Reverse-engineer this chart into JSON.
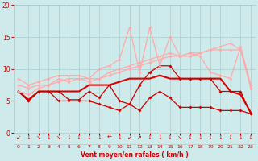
{
  "background_color": "#ceeaea",
  "grid_color": "#aacccc",
  "xlabel": "Vent moyen/en rafales ( km/h )",
  "xlabel_color": "#cc0000",
  "tick_color": "#cc0000",
  "xlim": [
    -0.5,
    23.5
  ],
  "ylim": [
    0,
    20
  ],
  "yticks": [
    0,
    5,
    10,
    15,
    20
  ],
  "xticks": [
    0,
    1,
    2,
    3,
    4,
    5,
    6,
    7,
    8,
    9,
    10,
    11,
    12,
    13,
    14,
    15,
    16,
    17,
    18,
    19,
    20,
    21,
    22,
    23
  ],
  "arrow_labels": [
    "↙",
    "↓",
    "↘",
    "↓",
    "↘",
    "↓",
    "↓",
    "↓",
    "↓",
    "←",
    "↓",
    "↙",
    "↗",
    "↓",
    "↓",
    "↓",
    "↘",
    "↓",
    "↓",
    "↓",
    "↓",
    "↓",
    "↓",
    "↓"
  ],
  "lines": [
    {
      "x": [
        0,
        1,
        2,
        3,
        4,
        5,
        6,
        7,
        8,
        9,
        10,
        11,
        12,
        13,
        14,
        15,
        16,
        17,
        18,
        19,
        20,
        21,
        22,
        23
      ],
      "y": [
        6.5,
        5.2,
        6.5,
        6.5,
        6.5,
        6.5,
        6.5,
        7.5,
        7.5,
        7.5,
        8.0,
        8.5,
        8.5,
        8.5,
        9.0,
        8.5,
        8.5,
        8.5,
        8.5,
        8.5,
        8.5,
        6.5,
        6.0,
        3.2
      ],
      "color": "#dd0000",
      "lw": 1.5,
      "marker": null,
      "ms": 0
    },
    {
      "x": [
        0,
        1,
        2,
        3,
        4,
        5,
        6,
        7,
        8,
        9,
        10,
        11,
        12,
        13,
        14,
        15,
        16,
        17,
        18,
        19,
        20,
        21,
        22,
        23
      ],
      "y": [
        6.5,
        5.0,
        6.5,
        6.5,
        6.5,
        5.2,
        5.2,
        6.5,
        5.5,
        7.5,
        5.0,
        4.5,
        7.5,
        9.5,
        10.5,
        10.5,
        8.5,
        8.5,
        8.5,
        8.5,
        6.5,
        6.5,
        6.5,
        3.0
      ],
      "color": "#cc0000",
      "lw": 0.9,
      "marker": "D",
      "ms": 2.0
    },
    {
      "x": [
        0,
        1,
        2,
        3,
        4,
        5,
        6,
        7,
        8,
        9,
        10,
        11,
        12,
        13,
        14,
        15,
        16,
        17,
        18,
        19,
        20,
        21,
        22,
        23
      ],
      "y": [
        6.5,
        5.0,
        6.5,
        6.5,
        5.0,
        5.0,
        5.0,
        5.0,
        4.5,
        4.0,
        3.5,
        4.5,
        3.5,
        5.5,
        6.5,
        5.5,
        4.0,
        4.0,
        4.0,
        4.0,
        3.5,
        3.5,
        3.5,
        3.0
      ],
      "color": "#cc0000",
      "lw": 0.9,
      "marker": "D",
      "ms": 2.0
    },
    {
      "x": [
        0,
        1,
        2,
        3,
        4,
        5,
        6,
        7,
        8,
        9,
        10,
        11,
        12,
        13,
        14,
        15,
        16,
        17,
        18,
        19,
        20,
        21,
        22,
        23
      ],
      "y": [
        8.5,
        7.5,
        8.0,
        8.5,
        9.0,
        9.0,
        9.0,
        8.5,
        10.0,
        10.5,
        11.5,
        16.5,
        9.5,
        16.5,
        10.5,
        15.0,
        12.0,
        12.5,
        12.0,
        9.5,
        9.0,
        8.5,
        13.5,
        7.5
      ],
      "color": "#ffaaaa",
      "lw": 0.9,
      "marker": "D",
      "ms": 2.0
    },
    {
      "x": [
        0,
        1,
        2,
        3,
        4,
        5,
        6,
        7,
        8,
        9,
        10,
        11,
        12,
        13,
        14,
        15,
        16,
        17,
        18,
        19,
        20,
        21,
        22,
        23
      ],
      "y": [
        7.5,
        7.0,
        7.5,
        7.5,
        8.5,
        8.0,
        8.5,
        8.5,
        8.5,
        9.5,
        10.0,
        10.5,
        11.0,
        11.5,
        12.0,
        12.5,
        12.0,
        12.0,
        12.5,
        13.0,
        13.5,
        14.0,
        13.0,
        7.5
      ],
      "color": "#ffaaaa",
      "lw": 0.9,
      "marker": "D",
      "ms": 2.0
    },
    {
      "x": [
        0,
        1,
        2,
        3,
        4,
        5,
        6,
        7,
        8,
        9,
        10,
        11,
        12,
        13,
        14,
        15,
        16,
        17,
        18,
        19,
        20,
        21,
        22,
        23
      ],
      "y": [
        6.5,
        6.0,
        7.0,
        7.5,
        8.0,
        8.5,
        8.5,
        8.0,
        8.5,
        9.0,
        9.5,
        10.0,
        10.5,
        11.0,
        11.5,
        12.0,
        12.0,
        12.5,
        12.5,
        13.0,
        13.0,
        13.0,
        13.0,
        7.0
      ],
      "color": "#ffaaaa",
      "lw": 0.9,
      "marker": "D",
      "ms": 2.0
    }
  ]
}
